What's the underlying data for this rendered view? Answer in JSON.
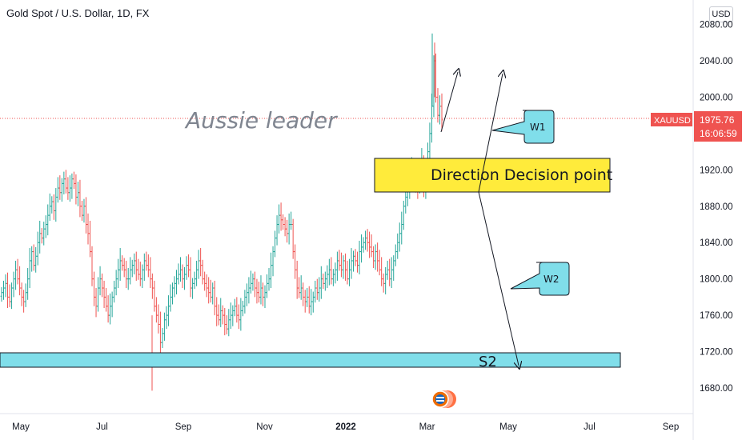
{
  "header": {
    "title": "Gold Spot / U.S. Dollar, 1D, FX",
    "currency_button": "USD"
  },
  "price_tag": {
    "symbol": "XAUUSD",
    "price": "1975.76",
    "countdown": "16:06:59"
  },
  "annotations": {
    "watermark": "Aussie leader",
    "decision_box": "Direction Decision point",
    "w1": "W1",
    "w2": "W2",
    "s2": "S2"
  },
  "colors": {
    "up": "#26a69a",
    "down": "#ef5350",
    "highlight": "#ffeb3b",
    "zone": "#80deea",
    "callout": "#80deea"
  },
  "chart_data": {
    "type": "candlestick",
    "title": "Gold Spot / U.S. Dollar, 1D, FX",
    "x_ticks": [
      "May",
      "Jul",
      "Sep",
      "Nov",
      "2022",
      "Mar",
      "May",
      "Jul",
      "Sep"
    ],
    "y_ticks": [
      1680,
      1720,
      1760,
      1800,
      1840,
      1880,
      1920,
      1960,
      2000,
      2040,
      2080
    ],
    "y_tick_labels": [
      "1680.00",
      "1720.00",
      "1760.00",
      "1800.00",
      "1840.00",
      "1880.00",
      "1920.00",
      "1960.00",
      "2000.00",
      "2040.00",
      "2080.00"
    ],
    "ylim": [
      1660,
      2090
    ],
    "last_price": 1975.76,
    "high": 2070,
    "low": 1677,
    "s2_zone": [
      1705,
      1720
    ],
    "decision_zone": [
      1893,
      1930
    ],
    "series": [
      {
        "name": "XAUUSD",
        "values": [
          1785,
          1790,
          1795,
          1780,
          1775,
          1790,
          1800,
          1810,
          1800,
          1790,
          1780,
          1775,
          1785,
          1800,
          1820,
          1830,
          1815,
          1825,
          1840,
          1850,
          1845,
          1855,
          1860,
          1870,
          1880,
          1885,
          1875,
          1890,
          1900,
          1895,
          1905,
          1910,
          1900,
          1895,
          1900,
          1910,
          1905,
          1890,
          1895,
          1880,
          1870,
          1880,
          1860,
          1850,
          1830,
          1800,
          1780,
          1770,
          1790,
          1800,
          1790,
          1780,
          1770,
          1760,
          1770,
          1780,
          1790,
          1800,
          1810,
          1820,
          1815,
          1810,
          1800,
          1800,
          1810,
          1815,
          1820,
          1810,
          1805,
          1800,
          1810,
          1820,
          1815,
          1810,
          1800,
          1790,
          1770,
          1760,
          1750,
          1730,
          1740,
          1755,
          1760,
          1770,
          1780,
          1790,
          1795,
          1800,
          1805,
          1810,
          1800,
          1805,
          1815,
          1810,
          1790,
          1795,
          1800,
          1810,
          1820,
          1815,
          1800,
          1795,
          1790,
          1785,
          1780,
          1790,
          1770,
          1760,
          1755,
          1765,
          1760,
          1750,
          1745,
          1755,
          1760,
          1765,
          1770,
          1760,
          1755,
          1765,
          1770,
          1780,
          1785,
          1790,
          1795,
          1800,
          1790,
          1785,
          1780,
          1790,
          1780,
          1785,
          1795,
          1800,
          1815,
          1830,
          1845,
          1860,
          1870,
          1865,
          1860,
          1855,
          1850,
          1860,
          1860,
          1830,
          1810,
          1790,
          1785,
          1790,
          1780,
          1775,
          1780,
          1770,
          1775,
          1780,
          1790,
          1785,
          1790,
          1800,
          1795,
          1800,
          1805,
          1810,
          1800,
          1805,
          1810,
          1820,
          1815,
          1810,
          1820,
          1810,
          1800,
          1810,
          1820,
          1825,
          1820,
          1815,
          1830,
          1835,
          1840,
          1845,
          1840,
          1835,
          1830,
          1820,
          1830,
          1820,
          1810,
          1800,
          1795,
          1805,
          1810,
          1800,
          1810,
          1820,
          1830,
          1840,
          1850,
          1860,
          1880,
          1890,
          1900,
          1910,
          1920,
          1910,
          1905,
          1900,
          1920,
          1930,
          1900,
          1920,
          1940,
          1960,
          1990,
          2040,
          2000,
          1980,
          1990,
          1975
        ]
      }
    ]
  }
}
